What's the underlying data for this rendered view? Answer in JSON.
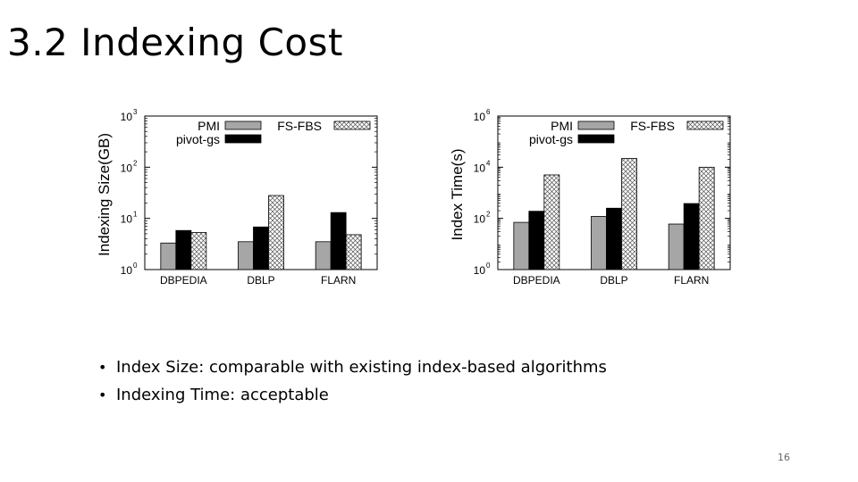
{
  "slide": {
    "title": "3.2 Indexing Cost",
    "bullets": [
      "Index Size: comparable with existing index-based algorithms",
      "Indexing Time: acceptable"
    ],
    "page_number": "16"
  },
  "colors": {
    "PMI": "#a6a6a6",
    "pivot-gs": "#000000",
    "FS-FBS": "hatch"
  },
  "chart_data": [
    {
      "type": "bar",
      "scale": "log",
      "ylabel": "Indexing Size(GB)",
      "ylim": [
        1,
        1000
      ],
      "yticks": [
        {
          "value": 1,
          "base": "10",
          "exp": "0"
        },
        {
          "value": 10,
          "base": "10",
          "exp": "1"
        },
        {
          "value": 100,
          "base": "10",
          "exp": "2"
        },
        {
          "value": 1000,
          "base": "10",
          "exp": "3"
        }
      ],
      "categories": [
        "DBPEDIA",
        "DBLP",
        "FLARN"
      ],
      "series": [
        {
          "name": "PMI",
          "values": [
            3.3,
            3.5,
            3.5
          ]
        },
        {
          "name": "pivot-gs",
          "values": [
            5.8,
            6.8,
            13
          ]
        },
        {
          "name": "FS-FBS",
          "values": [
            5.3,
            28,
            4.8
          ]
        }
      ],
      "legend_order": [
        "PMI",
        "FS-FBS",
        "pivot-gs"
      ]
    },
    {
      "type": "bar",
      "scale": "log",
      "ylabel": "Index Time(s)",
      "ylim": [
        1,
        1000000
      ],
      "yticks": [
        {
          "value": 1,
          "base": "10",
          "exp": "0"
        },
        {
          "value": 100,
          "base": "10",
          "exp": "2"
        },
        {
          "value": 10000,
          "base": "10",
          "exp": "4"
        },
        {
          "value": 1000000,
          "base": "10",
          "exp": "6"
        }
      ],
      "categories": [
        "DBPEDIA",
        "DBLP",
        "FLARN"
      ],
      "series": [
        {
          "name": "PMI",
          "values": [
            70,
            120,
            60
          ]
        },
        {
          "name": "pivot-gs",
          "values": [
            190,
            250,
            380
          ]
        },
        {
          "name": "FS-FBS",
          "values": [
            5000,
            22000,
            10000
          ]
        }
      ],
      "legend_order": [
        "PMI",
        "FS-FBS",
        "pivot-gs"
      ]
    }
  ]
}
